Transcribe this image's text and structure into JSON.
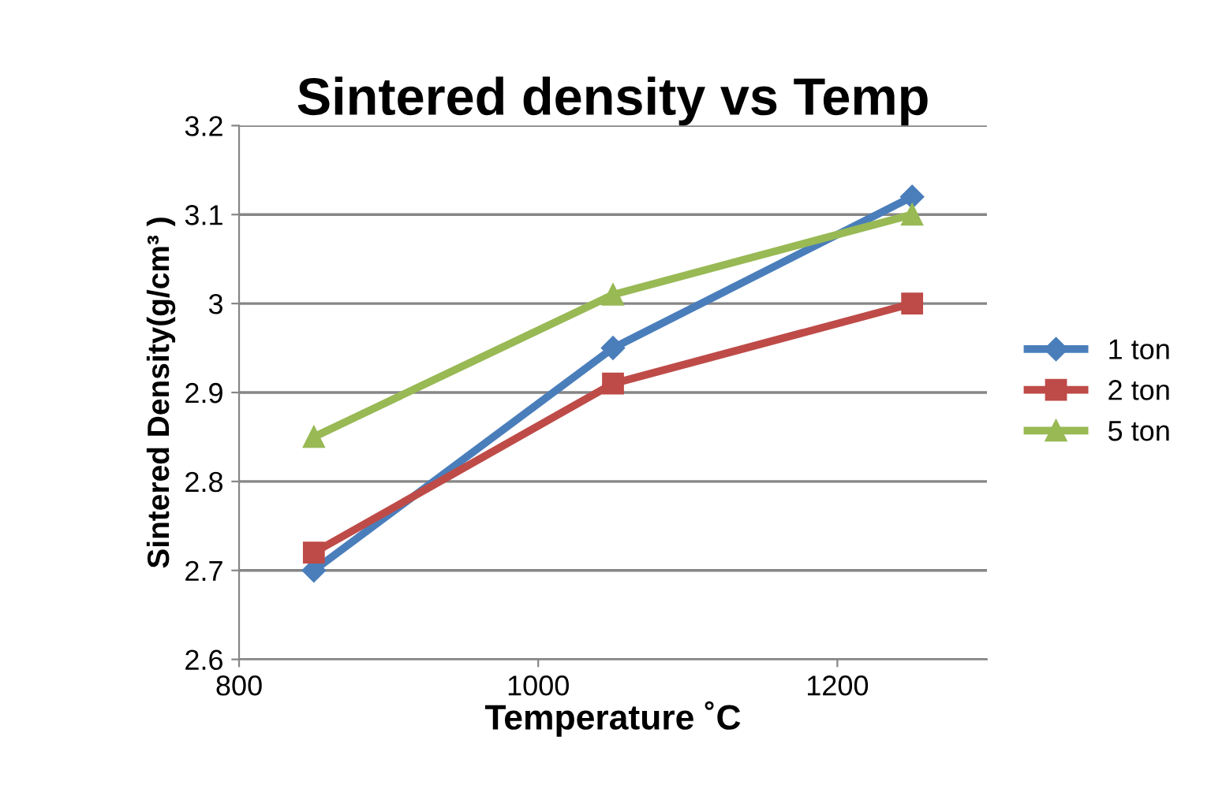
{
  "chart_data": {
    "type": "line",
    "title": "Sintered density vs Temp",
    "xlabel": "Temperature ˚C",
    "ylabel": "Sintered Density(g/cm³ )",
    "x": [
      850,
      1050,
      1250
    ],
    "series": [
      {
        "name": "1 ton",
        "color": "#4a7ebb",
        "marker": "diamond",
        "values": [
          2.7,
          2.95,
          3.12
        ]
      },
      {
        "name": "2 ton",
        "color": "#be4b48",
        "marker": "square",
        "values": [
          2.72,
          2.91,
          3.0
        ]
      },
      {
        "name": "5 ton",
        "color": "#98b954",
        "marker": "triangle",
        "values": [
          2.85,
          3.01,
          3.1
        ]
      }
    ],
    "xlim": [
      800,
      1300
    ],
    "xticks": [
      800,
      1000,
      1200
    ],
    "ylim": [
      2.6,
      3.2
    ],
    "yticks": [
      2.6,
      2.7,
      2.8,
      2.9,
      3,
      3.1,
      3.2
    ],
    "grid": "y",
    "legend": "right",
    "line_style": "solid"
  }
}
